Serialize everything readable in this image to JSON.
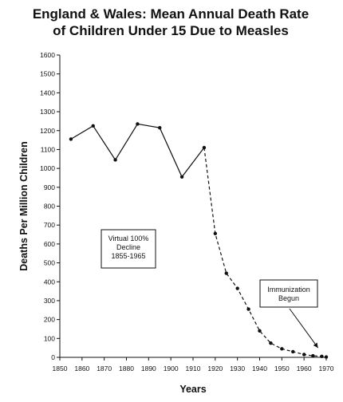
{
  "chart_data": {
    "type": "line",
    "title": [
      "England & Wales: Mean Annual Death Rate",
      "of Children Under 15 Due to Measles"
    ],
    "xlabel": "Years",
    "ylabel": "Deaths Per Million Children",
    "xlim": [
      1850,
      1970
    ],
    "ylim": [
      0,
      1600
    ],
    "xticks": [
      1850,
      1860,
      1870,
      1880,
      1890,
      1900,
      1910,
      1920,
      1930,
      1940,
      1950,
      1960,
      1970
    ],
    "yticks": [
      0,
      100,
      200,
      300,
      400,
      500,
      600,
      700,
      800,
      900,
      1000,
      1100,
      1200,
      1300,
      1400,
      1500,
      1600
    ],
    "grid": false,
    "series": [
      {
        "x": [
          1855,
          1865,
          1875,
          1885,
          1895,
          1905,
          1915,
          1920,
          1925,
          1930,
          1935,
          1940,
          1945,
          1950,
          1955,
          1960,
          1964,
          1968,
          1970
        ],
        "y": [
          1155,
          1225,
          1045,
          1235,
          1215,
          955,
          1110,
          655,
          445,
          365,
          255,
          140,
          75,
          45,
          30,
          15,
          8,
          5,
          2
        ],
        "style": "solid then dashed"
      }
    ],
    "annotations": [
      {
        "lines": [
          "Virtual 100%",
          "Decline",
          "1855-1965"
        ]
      },
      {
        "lines": [
          "Immunization",
          "Begun"
        ],
        "arrow_to": {
          "x": 1967,
          "y": 25
        }
      }
    ]
  }
}
